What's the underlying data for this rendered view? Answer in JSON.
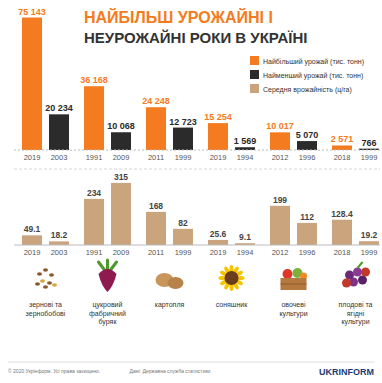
{
  "title": [
    "НАЙБІЛЬШ УРОЖАЙНІ І",
    "НЕУРОЖАЙНІ РОКИ В УКРАЇНІ"
  ],
  "crops": [
    "зернові та зернобобові",
    "цукровий фабричний буряк",
    "картопля",
    "соняшник",
    "овочеві культури",
    "плодові та ягідні культури"
  ],
  "chart_data": [
    {
      "type": "bar",
      "categories": [
        "2019",
        "2003",
        "1991",
        "2009",
        "2011",
        "1999",
        "2019",
        "1994",
        "2012",
        "1996",
        "2018",
        "1999"
      ],
      "series": [
        {
          "name": "Найбільший урожай (тис. тонн)",
          "color": "#f47b20",
          "values": [
            75143,
            null,
            36168,
            null,
            24248,
            null,
            15254,
            null,
            10017,
            null,
            2571,
            null
          ],
          "value_labels": [
            "75 143",
            null,
            "36 168",
            null,
            "24 248",
            null,
            "15 254",
            null,
            "10 017",
            null,
            "2 571",
            null
          ]
        },
        {
          "name": "Найменший урожай (тис. тонн)",
          "color": "#2b2b2b",
          "values": [
            null,
            20234,
            null,
            10068,
            null,
            12723,
            null,
            1569,
            null,
            5070,
            null,
            766
          ],
          "value_labels": [
            null,
            "20 234",
            null,
            "10 068",
            null,
            "12 723",
            null,
            "1 569",
            null,
            "5 070",
            null,
            "766"
          ]
        }
      ],
      "ylim": [
        0,
        76000
      ],
      "data_labels": true,
      "tick_labels": "x",
      "legend": "top-right"
    },
    {
      "type": "bar",
      "categories": [
        "2019",
        "2003",
        "1991",
        "2009",
        "2011",
        "1999",
        "2019",
        "1994",
        "2012",
        "1996",
        "2018",
        "1999"
      ],
      "series": [
        {
          "name": "Середня врожайність (ц/га)",
          "color": "#c9a47c",
          "values": [
            49.1,
            18.2,
            234,
            315,
            168,
            82,
            25.6,
            9.1,
            199,
            112,
            128.4,
            19.2
          ]
        }
      ],
      "ylim": [
        0,
        330
      ],
      "data_labels": true,
      "tick_labels": "x",
      "legend": "top-right"
    }
  ],
  "footer": {
    "copyright": "© 2020 Укрінформ. Усі права захищено.",
    "source": "Дані: Державна служба статистики",
    "logo": "UKRINFORM"
  }
}
